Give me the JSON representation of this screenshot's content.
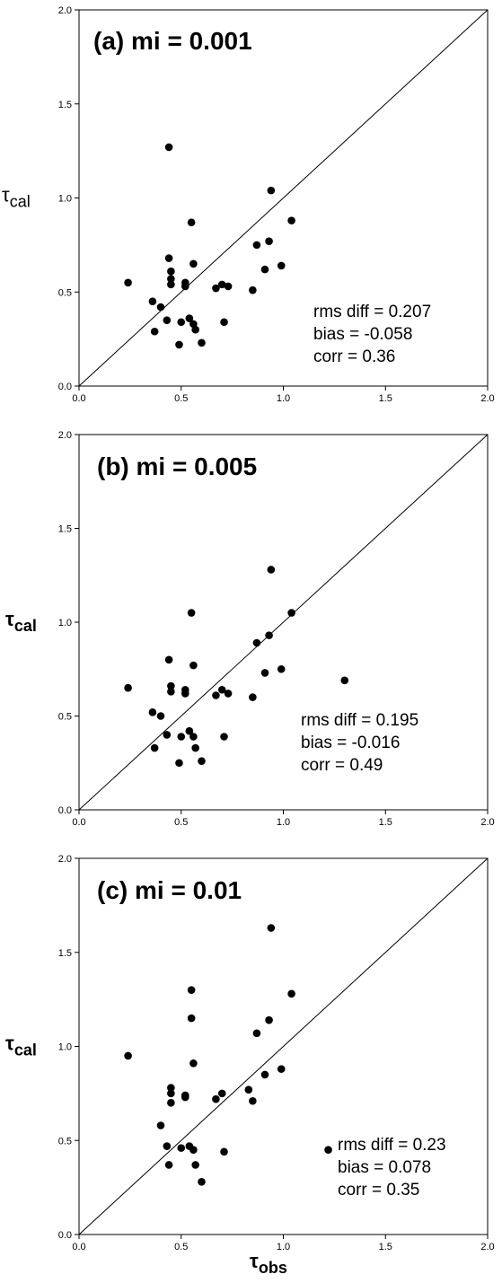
{
  "chart_data": [
    {
      "type": "scatter",
      "title": "(a) mi =  0.001",
      "xlabel": "",
      "ylabel": "τcal",
      "xlim": [
        0,
        2
      ],
      "ylim": [
        0,
        2
      ],
      "xticks": [
        "0.0",
        "0.5",
        "1.0",
        "1.5",
        "2.0"
      ],
      "yticks": [
        "0.0",
        "0.5",
        "1.0",
        "1.5",
        "2.0"
      ],
      "reference_line": "1:1",
      "annotations": [
        "rms diff = 0.207",
        "bias = -0.058",
        "corr = 0.36"
      ],
      "points": [
        [
          0.44,
          1.27
        ],
        [
          0.24,
          0.55
        ],
        [
          0.36,
          0.45
        ],
        [
          0.37,
          0.29
        ],
        [
          0.4,
          0.42
        ],
        [
          0.43,
          0.35
        ],
        [
          0.44,
          0.68
        ],
        [
          0.45,
          0.61
        ],
        [
          0.45,
          0.57
        ],
        [
          0.45,
          0.54
        ],
        [
          0.49,
          0.22
        ],
        [
          0.5,
          0.34
        ],
        [
          0.52,
          0.55
        ],
        [
          0.52,
          0.53
        ],
        [
          0.54,
          0.36
        ],
        [
          0.55,
          0.87
        ],
        [
          0.56,
          0.65
        ],
        [
          0.56,
          0.33
        ],
        [
          0.57,
          0.3
        ],
        [
          0.6,
          0.23
        ],
        [
          0.67,
          0.52
        ],
        [
          0.7,
          0.54
        ],
        [
          0.71,
          0.34
        ],
        [
          0.73,
          0.53
        ],
        [
          0.85,
          0.51
        ],
        [
          0.87,
          0.75
        ],
        [
          0.91,
          0.62
        ],
        [
          0.93,
          0.77
        ],
        [
          0.94,
          1.04
        ],
        [
          0.99,
          0.64
        ],
        [
          1.04,
          0.88
        ]
      ]
    },
    {
      "type": "scatter",
      "title": "(b) mi = 0.005",
      "xlabel": "",
      "ylabel": "τcal",
      "xlim": [
        0,
        2
      ],
      "ylim": [
        0,
        2
      ],
      "xticks": [
        "0.0",
        "0.5",
        "1.0",
        "1.5",
        "2.0"
      ],
      "yticks": [
        "0.0",
        "0.5",
        "1.0",
        "1.5",
        "2.0"
      ],
      "reference_line": "1:1",
      "annotations": [
        "rms diff = 0.195",
        "bias = -0.016",
        "corr = 0.49"
      ],
      "points": [
        [
          0.24,
          0.65
        ],
        [
          0.36,
          0.52
        ],
        [
          0.37,
          0.33
        ],
        [
          0.4,
          0.5
        ],
        [
          0.43,
          0.4
        ],
        [
          0.44,
          0.8
        ],
        [
          0.45,
          0.66
        ],
        [
          0.45,
          0.63
        ],
        [
          0.49,
          0.25
        ],
        [
          0.5,
          0.39
        ],
        [
          0.52,
          0.64
        ],
        [
          0.52,
          0.62
        ],
        [
          0.54,
          0.42
        ],
        [
          0.55,
          1.05
        ],
        [
          0.56,
          0.77
        ],
        [
          0.56,
          0.39
        ],
        [
          0.57,
          0.33
        ],
        [
          0.6,
          0.26
        ],
        [
          0.67,
          0.61
        ],
        [
          0.7,
          0.64
        ],
        [
          0.71,
          0.39
        ],
        [
          0.73,
          0.62
        ],
        [
          0.85,
          0.6
        ],
        [
          0.87,
          0.89
        ],
        [
          0.91,
          0.73
        ],
        [
          0.93,
          0.93
        ],
        [
          0.94,
          1.28
        ],
        [
          0.99,
          0.75
        ],
        [
          1.04,
          1.05
        ],
        [
          1.3,
          0.69
        ]
      ]
    },
    {
      "type": "scatter",
      "title": "(c) mi = 0.01",
      "xlabel": "τobs",
      "ylabel": "τcal",
      "xlim": [
        0,
        2
      ],
      "ylim": [
        0,
        2
      ],
      "xticks": [
        "0.0",
        "0.5",
        "1.0",
        "1.5",
        "2.0"
      ],
      "yticks": [
        "0.0",
        "0.5",
        "1.0",
        "1.5",
        "2.0"
      ],
      "reference_line": "1:1",
      "annotations": [
        "rms diff = 0.23",
        "bias = 0.078",
        "corr = 0.35"
      ],
      "points": [
        [
          0.24,
          0.95
        ],
        [
          0.4,
          0.58
        ],
        [
          0.43,
          0.47
        ],
        [
          0.44,
          0.37
        ],
        [
          0.45,
          0.78
        ],
        [
          0.45,
          0.75
        ],
        [
          0.45,
          0.7
        ],
        [
          0.5,
          0.46
        ],
        [
          0.52,
          0.74
        ],
        [
          0.52,
          0.73
        ],
        [
          0.54,
          0.47
        ],
        [
          0.55,
          1.3
        ],
        [
          0.55,
          1.15
        ],
        [
          0.56,
          0.91
        ],
        [
          0.56,
          0.45
        ],
        [
          0.57,
          0.37
        ],
        [
          0.6,
          0.28
        ],
        [
          0.67,
          0.72
        ],
        [
          0.7,
          0.75
        ],
        [
          0.71,
          0.44
        ],
        [
          0.83,
          0.77
        ],
        [
          0.85,
          0.71
        ],
        [
          0.87,
          1.07
        ],
        [
          0.91,
          0.85
        ],
        [
          0.93,
          1.14
        ],
        [
          0.94,
          1.63
        ],
        [
          0.99,
          0.88
        ],
        [
          1.04,
          1.28
        ],
        [
          1.22,
          0.45
        ]
      ]
    }
  ]
}
